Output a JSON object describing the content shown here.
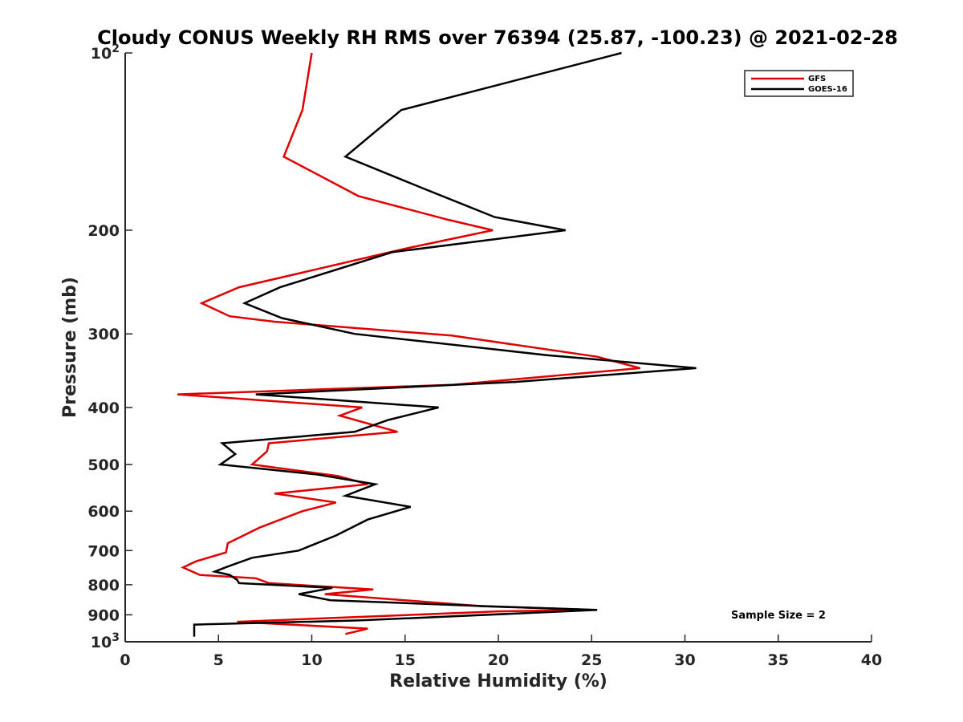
{
  "chart_data": {
    "type": "line",
    "title": "Cloudy CONUS Weekly RH RMS over 76394 (25.87, -100.23) @ 2021-02-28",
    "xlabel": "Relative Humidity (%)",
    "ylabel": "Pressure (mb)",
    "xlim": [
      0,
      40
    ],
    "ylim": [
      100,
      1000
    ],
    "yscale": "log",
    "y_reversed": true,
    "grid": false,
    "legend_position": "top-right",
    "x_ticks": [
      0,
      5,
      10,
      15,
      20,
      25,
      30,
      35,
      40
    ],
    "x_tick_labels": [
      "0",
      "5",
      "10",
      "15",
      "20",
      "25",
      "30",
      "35",
      "40"
    ],
    "y_ticks": [
      100,
      200,
      300,
      400,
      500,
      600,
      700,
      800,
      900,
      1000
    ],
    "y_tick_labels": [
      {
        "base": "10",
        "exp": "2"
      },
      {
        "base": "200",
        "exp": ""
      },
      {
        "base": "300",
        "exp": ""
      },
      {
        "base": "400",
        "exp": ""
      },
      {
        "base": "500",
        "exp": ""
      },
      {
        "base": "600",
        "exp": ""
      },
      {
        "base": "700",
        "exp": ""
      },
      {
        "base": "800",
        "exp": ""
      },
      {
        "base": "900",
        "exp": ""
      },
      {
        "base": "10",
        "exp": "3"
      }
    ],
    "annotation": "Sample Size = 2",
    "series": [
      {
        "name": "GFS",
        "color": "#e00000",
        "points": [
          [
            10.0,
            100
          ],
          [
            9.5,
            125
          ],
          [
            8.5,
            150
          ],
          [
            12.5,
            175
          ],
          [
            17.3,
            192
          ],
          [
            19.7,
            200
          ],
          [
            15.0,
            215
          ],
          [
            6.1,
            250
          ],
          [
            4.1,
            266
          ],
          [
            5.6,
            280
          ],
          [
            8.0,
            286
          ],
          [
            17.5,
            302
          ],
          [
            25.3,
            328
          ],
          [
            27.6,
            343
          ],
          [
            17.6,
            366
          ],
          [
            2.8,
            380
          ],
          [
            12.7,
            400
          ],
          [
            11.5,
            413
          ],
          [
            14.6,
            440
          ],
          [
            7.7,
            460
          ],
          [
            7.6,
            475
          ],
          [
            6.8,
            500
          ],
          [
            11.4,
            523
          ],
          [
            13.0,
            540
          ],
          [
            8.0,
            560
          ],
          [
            11.3,
            580
          ],
          [
            9.5,
            600
          ],
          [
            7.2,
            640
          ],
          [
            5.5,
            680
          ],
          [
            5.4,
            705
          ],
          [
            3.8,
            730
          ],
          [
            3.1,
            748
          ],
          [
            4.0,
            770
          ],
          [
            7.0,
            780
          ],
          [
            7.7,
            795
          ],
          [
            13.3,
            815
          ],
          [
            10.7,
            830
          ],
          [
            19.1,
            870
          ],
          [
            25.0,
            883
          ],
          [
            20.0,
            888
          ],
          [
            6.0,
            925
          ],
          [
            13.0,
            950
          ],
          [
            11.8,
            970
          ]
        ]
      },
      {
        "name": "GOES-16",
        "color": "#000000",
        "points": [
          [
            26.6,
            100
          ],
          [
            14.8,
            125
          ],
          [
            11.8,
            150
          ],
          [
            16.0,
            170
          ],
          [
            19.8,
            190
          ],
          [
            23.6,
            200
          ],
          [
            14.3,
            218
          ],
          [
            8.3,
            250
          ],
          [
            6.4,
            266
          ],
          [
            8.4,
            282
          ],
          [
            12.3,
            300
          ],
          [
            22.6,
            326
          ],
          [
            30.6,
            343
          ],
          [
            20.9,
            362
          ],
          [
            7.0,
            380
          ],
          [
            16.8,
            400
          ],
          [
            14.1,
            420
          ],
          [
            12.3,
            440
          ],
          [
            5.2,
            460
          ],
          [
            5.9,
            480
          ],
          [
            5.1,
            500
          ],
          [
            10.3,
            520
          ],
          [
            13.4,
            540
          ],
          [
            11.8,
            565
          ],
          [
            15.3,
            590
          ],
          [
            13.0,
            620
          ],
          [
            11.3,
            660
          ],
          [
            9.3,
            700
          ],
          [
            6.8,
            720
          ],
          [
            5.5,
            745
          ],
          [
            4.8,
            760
          ],
          [
            5.6,
            770
          ],
          [
            6.0,
            785
          ],
          [
            6.1,
            795
          ],
          [
            11.1,
            810
          ],
          [
            9.3,
            830
          ],
          [
            11.0,
            850
          ],
          [
            19.3,
            870
          ],
          [
            25.3,
            883
          ],
          [
            12.5,
            920
          ],
          [
            3.7,
            935
          ],
          [
            3.7,
            980
          ]
        ]
      }
    ]
  }
}
